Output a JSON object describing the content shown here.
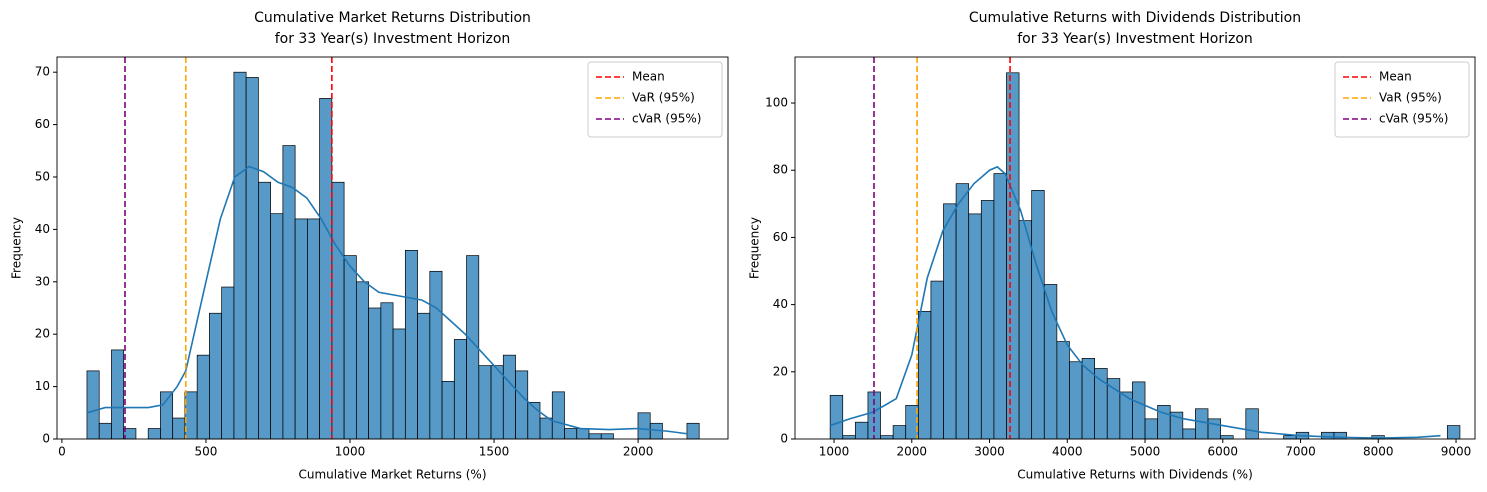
{
  "chart_data": [
    {
      "type": "histogram",
      "title": [
        "Cumulative Market Returns Distribution",
        "for 33 Year(s) Investment Horizon"
      ],
      "xlabel": "Cumulative Market Returns (%)",
      "ylabel": "Frequency",
      "bins": [
        87,
        129.5,
        172,
        214.5,
        257,
        299.5,
        342,
        384.5,
        427,
        469.5,
        512,
        554.5,
        597,
        639.5,
        682,
        724.5,
        767,
        809.5,
        852,
        894.5,
        937,
        979.5,
        1022,
        1064.5,
        1107,
        1149.5,
        1192,
        1234.5,
        1277,
        1319.5,
        1362,
        1404.5,
        1447,
        1489.5,
        1532,
        1574.5,
        1617,
        1659.5,
        1702,
        1744.5,
        1787,
        1829.5,
        1872,
        1914.5,
        1957,
        1999.5,
        2042,
        2084.5,
        2127,
        2169.5,
        2212
      ],
      "counts": [
        13,
        3,
        17,
        2,
        0,
        2,
        9,
        4,
        9,
        16,
        24,
        29,
        70,
        69,
        49,
        43,
        56,
        42,
        42,
        65,
        49,
        35,
        30,
        25,
        26,
        21,
        36,
        24,
        32,
        11,
        19,
        35,
        14,
        14,
        16,
        13,
        7,
        4,
        9,
        2,
        2,
        1,
        1,
        0,
        0,
        5,
        3,
        0,
        0,
        3
      ],
      "color": "#1f77b4",
      "kde": {
        "color": "#1f77b4",
        "x": [
          87,
          150,
          219,
          300,
          350,
          400,
          430,
          500,
          550,
          600,
          650,
          700,
          750,
          800,
          850,
          900,
          950,
          1000,
          1050,
          1100,
          1150,
          1200,
          1250,
          1300,
          1350,
          1400,
          1450,
          1500,
          1550,
          1600,
          1650,
          1700,
          1800,
          1900,
          2000,
          2100,
          2170
        ],
        "y": [
          5,
          6,
          6,
          6,
          6.5,
          10,
          13,
          30,
          42,
          50,
          52,
          51,
          49,
          48,
          46,
          42,
          37,
          33,
          30,
          28,
          27.5,
          27,
          26.5,
          25,
          22.5,
          20,
          17,
          14,
          11,
          8,
          5.5,
          3.5,
          2,
          1.8,
          2,
          1.5,
          1
        ]
      },
      "vlines": [
        {
          "name": "Mean",
          "value": 937,
          "color": "#ff0000"
        },
        {
          "name": "VaR (95%)",
          "value": 430,
          "color": "#ffa500"
        },
        {
          "name": "cVaR (95%)",
          "value": 219,
          "color": "#800080"
        }
      ],
      "legend": "upper right",
      "xlim": [
        -17,
        2312
      ],
      "ylim": [
        0,
        72.9
      ],
      "xticks": [
        0,
        500,
        1000,
        1500,
        2000
      ],
      "yticks": [
        0,
        10,
        20,
        30,
        40,
        50,
        60,
        70
      ]
    },
    {
      "type": "histogram",
      "title": [
        "Cumulative Returns with Dividends Distribution",
        "for 33 Year(s) Investment Horizon"
      ],
      "xlabel": "Cumulative Returns with Dividends (%)",
      "ylabel": "Frequency",
      "bins": [
        950,
        1112,
        1274,
        1436,
        1598,
        1760,
        1922,
        2084,
        2246,
        2408,
        2570,
        2732,
        2894,
        3056,
        3218,
        3380,
        3542,
        3704,
        3866,
        4028,
        4190,
        4352,
        4514,
        4676,
        4838,
        5000,
        5162,
        5324,
        5486,
        5648,
        5810,
        5972,
        6134,
        6296,
        6458,
        6620,
        6782,
        6944,
        7106,
        7268,
        7430,
        7592,
        7754,
        7916,
        8078,
        8240,
        8402,
        8564,
        8726,
        8888,
        9050
      ],
      "counts": [
        13,
        1,
        5,
        14,
        1,
        4,
        10,
        38,
        47,
        70,
        76,
        67,
        71,
        79,
        109,
        65,
        74,
        46,
        29,
        23,
        24,
        21,
        18,
        14,
        17,
        6,
        10,
        8,
        3,
        9,
        6,
        1,
        0,
        9,
        0,
        0,
        1,
        2,
        0,
        2,
        2,
        0,
        0,
        1,
        0,
        0,
        0,
        0,
        0,
        4
      ],
      "color": "#1f77b4",
      "kde": {
        "color": "#1f77b4",
        "x": [
          949,
          1200,
          1500,
          1800,
          2000,
          2200,
          2400,
          2600,
          2800,
          3000,
          3100,
          3200,
          3400,
          3600,
          3800,
          4000,
          4200,
          4400,
          4600,
          4800,
          5000,
          5200,
          5500,
          6000,
          6500,
          7000,
          7500,
          8000,
          8500,
          8800
        ],
        "y": [
          4,
          6,
          8,
          12,
          25,
          48,
          62,
          70,
          76,
          80,
          81,
          79,
          68,
          52,
          38,
          28,
          22,
          18,
          15,
          12,
          10,
          8,
          6,
          4,
          2,
          1,
          0.5,
          0.3,
          0.5,
          1
        ]
      },
      "vlines": [
        {
          "name": "Mean",
          "value": 3264,
          "color": "#ff0000"
        },
        {
          "name": "VaR (95%)",
          "value": 2068,
          "color": "#ffa500"
        },
        {
          "name": "cVaR (95%)",
          "value": 1514,
          "color": "#800080"
        }
      ],
      "legend": "upper right",
      "xlim": [
        498,
        9244
      ],
      "ylim": [
        0,
        113.7
      ],
      "xticks": [
        1000,
        2000,
        3000,
        4000,
        5000,
        6000,
        7000,
        8000,
        9000
      ],
      "yticks": [
        0,
        20,
        40,
        60,
        80,
        100
      ]
    }
  ]
}
